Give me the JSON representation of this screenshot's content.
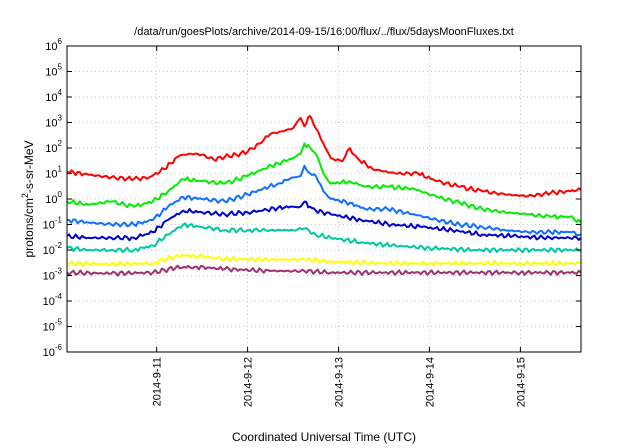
{
  "chart_data": {
    "type": "line",
    "title": "/data/run/goesPlots/archive/2014-09-15/16:00/flux/../flux/5daysMoonFluxes.txt",
    "xlabel": "Coordinated Universal Time (UTC)",
    "ylabel": {
      "prefix": "protons/cm",
      "sup": "2",
      "suffix": "-s-sr-MeV"
    },
    "x_axis": {
      "type": "date",
      "range": [
        "2014-09-10T00:20",
        "2014-09-15T16:00"
      ],
      "ticks": [
        {
          "value": "2014-09-11T00:00",
          "label": "2014-9-11"
        },
        {
          "value": "2014-09-12T00:00",
          "label": "2014-9-12"
        },
        {
          "value": "2014-09-13T00:00",
          "label": "2014-9-13"
        },
        {
          "value": "2014-09-14T00:00",
          "label": "2014-9-14"
        },
        {
          "value": "2014-09-15T00:00",
          "label": "2014-9-15"
        }
      ]
    },
    "y_axis": {
      "scale": "log",
      "range": [
        1e-06,
        1000000.0
      ],
      "ticks": [
        {
          "value": 1e-06,
          "base": "10",
          "exp": "-6"
        },
        {
          "value": 1e-05,
          "base": "10",
          "exp": "-5"
        },
        {
          "value": 0.0001,
          "base": "10",
          "exp": "-4"
        },
        {
          "value": 0.001,
          "base": "10",
          "exp": "-3"
        },
        {
          "value": 0.01,
          "base": "10",
          "exp": "-2"
        },
        {
          "value": 0.1,
          "base": "10",
          "exp": "-1"
        },
        {
          "value": 1.0,
          "base": "10",
          "exp": "0"
        },
        {
          "value": 10.0,
          "base": "10",
          "exp": "1"
        },
        {
          "value": 100.0,
          "base": "10",
          "exp": "2"
        },
        {
          "value": 1000.0,
          "base": "10",
          "exp": "3"
        },
        {
          "value": 10000.0,
          "base": "10",
          "exp": "4"
        },
        {
          "value": 100000.0,
          "base": "10",
          "exp": "5"
        },
        {
          "value": 1000000.0,
          "base": "10",
          "exp": "6"
        }
      ]
    },
    "grid": true,
    "legend": "none",
    "series": [
      {
        "color": "#ff0000",
        "points": [
          [
            "2014-09-10T00:20",
            12
          ],
          [
            "2014-09-10T06:00",
            9
          ],
          [
            "2014-09-10T12:00",
            7
          ],
          [
            "2014-09-10T18:00",
            6
          ],
          [
            "2014-09-10T22:00",
            7
          ],
          [
            "2014-09-11T02:00",
            15
          ],
          [
            "2014-09-11T06:00",
            50
          ],
          [
            "2014-09-11T09:00",
            60
          ],
          [
            "2014-09-11T12:00",
            55
          ],
          [
            "2014-09-11T15:00",
            35
          ],
          [
            "2014-09-11T18:00",
            45
          ],
          [
            "2014-09-11T21:00",
            55
          ],
          [
            "2014-09-12T00:00",
            70
          ],
          [
            "2014-09-12T03:00",
            150
          ],
          [
            "2014-09-12T06:00",
            350
          ],
          [
            "2014-09-12T09:00",
            450
          ],
          [
            "2014-09-12T12:00",
            600
          ],
          [
            "2014-09-12T15:00",
            700
          ],
          [
            "2014-09-12T14:00",
            1500
          ],
          [
            "2014-09-12T16:30",
            1800
          ],
          [
            "2014-09-12T18:00",
            600
          ],
          [
            "2014-09-12T20:00",
            150
          ],
          [
            "2014-09-12T22:00",
            40
          ],
          [
            "2014-09-13T01:00",
            30
          ],
          [
            "2014-09-13T03:00",
            100
          ],
          [
            "2014-09-13T05:00",
            40
          ],
          [
            "2014-09-13T09:00",
            15
          ],
          [
            "2014-09-13T15:00",
            10
          ],
          [
            "2014-09-13T21:00",
            10
          ],
          [
            "2014-09-14T02:00",
            5
          ],
          [
            "2014-09-14T08:00",
            3
          ],
          [
            "2014-09-14T14:00",
            2
          ],
          [
            "2014-09-14T20:00",
            1.5
          ],
          [
            "2014-09-15T02:00",
            1.3
          ],
          [
            "2014-09-15T08:00",
            1.7
          ],
          [
            "2014-09-15T12:00",
            2
          ],
          [
            "2014-09-15T16:00",
            2.3
          ]
        ]
      },
      {
        "color": "#00ee00",
        "points": [
          [
            "2014-09-10T00:20",
            0.8
          ],
          [
            "2014-09-10T06:00",
            0.6
          ],
          [
            "2014-09-10T12:00",
            0.8
          ],
          [
            "2014-09-10T18:00",
            0.5
          ],
          [
            "2014-09-10T23:00",
            0.8
          ],
          [
            "2014-09-11T03:00",
            2
          ],
          [
            "2014-09-11T07:00",
            6
          ],
          [
            "2014-09-11T12:00",
            5
          ],
          [
            "2014-09-11T18:00",
            4
          ],
          [
            "2014-09-12T00:00",
            8
          ],
          [
            "2014-09-12T04:00",
            15
          ],
          [
            "2014-09-12T08:00",
            25
          ],
          [
            "2014-09-12T12:00",
            40
          ],
          [
            "2014-09-12T14:00",
            60
          ],
          [
            "2014-09-12T15:00",
            150
          ],
          [
            "2014-09-12T16:30",
            100
          ],
          [
            "2014-09-12T18:00",
            60
          ],
          [
            "2014-09-12T20:00",
            10
          ],
          [
            "2014-09-12T22:00",
            4
          ],
          [
            "2014-09-13T03:00",
            5
          ],
          [
            "2014-09-13T07:00",
            3
          ],
          [
            "2014-09-13T13:00",
            3
          ],
          [
            "2014-09-13T20:00",
            2.5
          ],
          [
            "2014-09-14T02:00",
            1.2
          ],
          [
            "2014-09-14T08:00",
            0.7
          ],
          [
            "2014-09-14T14:00",
            0.4
          ],
          [
            "2014-09-14T20:00",
            0.3
          ],
          [
            "2014-09-15T02:00",
            0.25
          ],
          [
            "2014-09-15T08:00",
            0.2
          ],
          [
            "2014-09-15T13:00",
            0.2
          ],
          [
            "2014-09-15T16:00",
            0.12
          ]
        ]
      },
      {
        "color": "#1070ff",
        "points": [
          [
            "2014-09-10T00:20",
            0.15
          ],
          [
            "2014-09-10T06:00",
            0.12
          ],
          [
            "2014-09-10T12:00",
            0.1
          ],
          [
            "2014-09-10T18:00",
            0.1
          ],
          [
            "2014-09-10T23:00",
            0.15
          ],
          [
            "2014-09-11T03:00",
            0.5
          ],
          [
            "2014-09-11T07:00",
            1.2
          ],
          [
            "2014-09-11T12:00",
            1.0
          ],
          [
            "2014-09-11T18:00",
            0.8
          ],
          [
            "2014-09-12T00:00",
            1.5
          ],
          [
            "2014-09-12T04:00",
            2.5
          ],
          [
            "2014-09-12T08:00",
            4
          ],
          [
            "2014-09-12T12:00",
            7
          ],
          [
            "2014-09-12T14:00",
            8
          ],
          [
            "2014-09-12T15:00",
            20
          ],
          [
            "2014-09-12T16:30",
            10
          ],
          [
            "2014-09-12T18:00",
            8
          ],
          [
            "2014-09-12T20:00",
            2
          ],
          [
            "2014-09-12T22:00",
            1.0
          ],
          [
            "2014-09-13T03:00",
            0.7
          ],
          [
            "2014-09-13T07:00",
            0.4
          ],
          [
            "2014-09-13T13:00",
            0.4
          ],
          [
            "2014-09-13T20:00",
            0.25
          ],
          [
            "2014-09-14T02:00",
            0.15
          ],
          [
            "2014-09-14T08:00",
            0.1
          ],
          [
            "2014-09-14T14:00",
            0.08
          ],
          [
            "2014-09-14T20:00",
            0.06
          ],
          [
            "2014-09-15T02:00",
            0.05
          ],
          [
            "2014-09-15T08:00",
            0.05
          ],
          [
            "2014-09-15T13:00",
            0.05
          ],
          [
            "2014-09-15T16:00",
            0.04
          ]
        ]
      },
      {
        "color": "#0000cc",
        "points": [
          [
            "2014-09-10T00:20",
            0.035
          ],
          [
            "2014-09-10T06:00",
            0.03
          ],
          [
            "2014-09-10T12:00",
            0.03
          ],
          [
            "2014-09-10T18:00",
            0.03
          ],
          [
            "2014-09-10T23:00",
            0.05
          ],
          [
            "2014-09-11T03:00",
            0.15
          ],
          [
            "2014-09-11T07:00",
            0.35
          ],
          [
            "2014-09-11T12:00",
            0.3
          ],
          [
            "2014-09-11T18:00",
            0.25
          ],
          [
            "2014-09-12T00:00",
            0.3
          ],
          [
            "2014-09-12T04:00",
            0.35
          ],
          [
            "2014-09-12T08:00",
            0.45
          ],
          [
            "2014-09-12T12:00",
            0.5
          ],
          [
            "2014-09-12T14:00",
            0.5
          ],
          [
            "2014-09-12T15:00",
            0.8
          ],
          [
            "2014-09-12T16:30",
            0.5
          ],
          [
            "2014-09-12T18:00",
            0.35
          ],
          [
            "2014-09-12T22:00",
            0.25
          ],
          [
            "2014-09-13T06:00",
            0.15
          ],
          [
            "2014-09-13T14:00",
            0.1
          ],
          [
            "2014-09-13T22:00",
            0.08
          ],
          [
            "2014-09-14T06:00",
            0.06
          ],
          [
            "2014-09-14T14:00",
            0.04
          ],
          [
            "2014-09-14T22:00",
            0.035
          ],
          [
            "2014-09-15T06:00",
            0.03
          ],
          [
            "2014-09-15T16:00",
            0.03
          ]
        ]
      },
      {
        "color": "#00c8a0",
        "points": [
          [
            "2014-09-10T00:20",
            0.012
          ],
          [
            "2014-09-10T06:00",
            0.01
          ],
          [
            "2014-09-10T12:00",
            0.01
          ],
          [
            "2014-09-10T18:00",
            0.01
          ],
          [
            "2014-09-10T23:00",
            0.015
          ],
          [
            "2014-09-11T03:00",
            0.04
          ],
          [
            "2014-09-11T07:00",
            0.1
          ],
          [
            "2014-09-11T12:00",
            0.08
          ],
          [
            "2014-09-11T18:00",
            0.06
          ],
          [
            "2014-09-12T00:00",
            0.06
          ],
          [
            "2014-09-12T06:00",
            0.06
          ],
          [
            "2014-09-12T12:00",
            0.06
          ],
          [
            "2014-09-12T15:00",
            0.07
          ],
          [
            "2014-09-12T18:00",
            0.04
          ],
          [
            "2014-09-12T22:00",
            0.03
          ],
          [
            "2014-09-13T06:00",
            0.02
          ],
          [
            "2014-09-13T14:00",
            0.015
          ],
          [
            "2014-09-14T00:00",
            0.012
          ],
          [
            "2014-09-14T12:00",
            0.01
          ],
          [
            "2014-09-15T00:00",
            0.01
          ],
          [
            "2014-09-15T16:00",
            0.01
          ]
        ]
      },
      {
        "color": "#ffff00",
        "points": [
          [
            "2014-09-10T00:20",
            0.003
          ],
          [
            "2014-09-10T12:00",
            0.0028
          ],
          [
            "2014-09-10T23:00",
            0.003
          ],
          [
            "2014-09-11T05:00",
            0.006
          ],
          [
            "2014-09-11T10:00",
            0.006
          ],
          [
            "2014-09-11T18:00",
            0.0045
          ],
          [
            "2014-09-12T06:00",
            0.0042
          ],
          [
            "2014-09-12T15:00",
            0.0042
          ],
          [
            "2014-09-12T22:00",
            0.0035
          ],
          [
            "2014-09-13T12:00",
            0.003
          ],
          [
            "2014-09-14T00:00",
            0.003
          ],
          [
            "2014-09-14T12:00",
            0.003
          ],
          [
            "2014-09-15T00:00",
            0.003
          ],
          [
            "2014-09-15T16:00",
            0.003
          ]
        ]
      },
      {
        "color": "#a0306e",
        "points": [
          [
            "2014-09-10T00:20",
            0.0013
          ],
          [
            "2014-09-10T12:00",
            0.0012
          ],
          [
            "2014-09-10T23:00",
            0.0013
          ],
          [
            "2014-09-11T05:00",
            0.002
          ],
          [
            "2014-09-11T10:00",
            0.0022
          ],
          [
            "2014-09-11T18:00",
            0.0018
          ],
          [
            "2014-09-12T06:00",
            0.0015
          ],
          [
            "2014-09-12T15:00",
            0.0015
          ],
          [
            "2014-09-12T22:00",
            0.0013
          ],
          [
            "2014-09-13T12:00",
            0.0013
          ],
          [
            "2014-09-14T00:00",
            0.0013
          ],
          [
            "2014-09-14T12:00",
            0.0013
          ],
          [
            "2014-09-15T00:00",
            0.0013
          ],
          [
            "2014-09-15T16:00",
            0.0013
          ]
        ]
      }
    ]
  }
}
